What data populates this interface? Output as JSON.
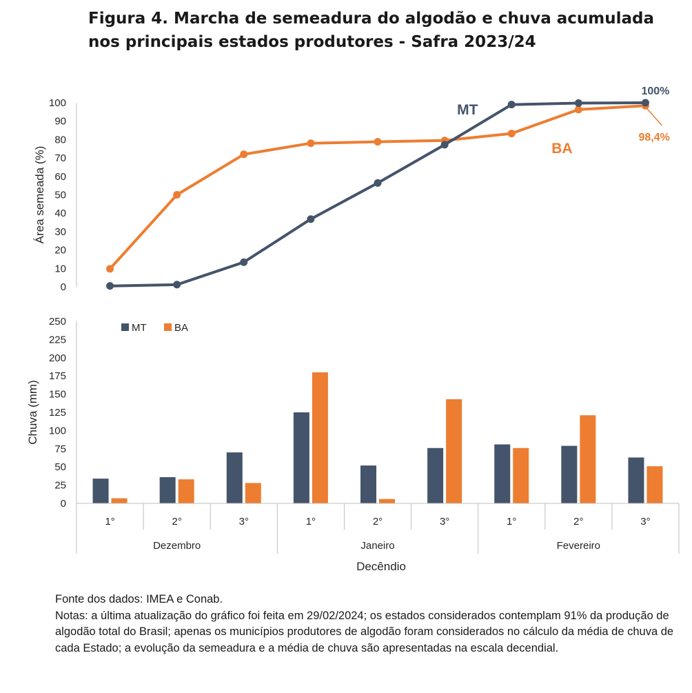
{
  "title": "Figura 4. Marcha de semeadura do algodão e chuva acumulada nos principais estados produtores - Safra 2023/24",
  "footer": {
    "source": "Fonte dos dados: IMEA e Conab.",
    "notes": "Notas: a última atualização do gráfico foi feita em 29/02/2024; os estados considerados contemplam 91% da produção de algodão total do Brasil; apenas os municípios produtores de algodão foram considerados no cálculo da média de chuva de cada Estado; a evolução da semeadura e a média de chuva são apresentadas na escala decendial."
  },
  "colors": {
    "MT": "#44546a",
    "BA": "#ed7d31",
    "axis": "#bfbfbf",
    "text": "#262626"
  },
  "chart_data": [
    {
      "type": "line",
      "ylabel": "Área semeada (%)",
      "ylim": [
        0,
        100
      ],
      "yticks": [
        0,
        10,
        20,
        30,
        40,
        50,
        60,
        70,
        80,
        90,
        100
      ],
      "grid": false,
      "series": [
        {
          "name": "MT",
          "values": [
            0.5,
            1.2,
            13.4,
            36.8,
            56.4,
            77.2,
            99.0,
            99.8,
            100.0
          ]
        },
        {
          "name": "BA",
          "values": [
            9.8,
            50.0,
            72.0,
            78.0,
            78.8,
            79.5,
            83.3,
            96.3,
            98.4
          ]
        }
      ],
      "series_labels": {
        "MT": "MT",
        "BA": "BA"
      },
      "annotations": {
        "MT_end": "100%",
        "BA_end": "98,4%"
      }
    },
    {
      "type": "bar",
      "ylabel": "Chuva (mm)",
      "xlabel": "Decêndio",
      "ylim": [
        0,
        250
      ],
      "yticks": [
        0,
        25,
        50,
        75,
        100,
        125,
        150,
        175,
        200,
        225,
        250
      ],
      "grid": false,
      "legend": "top-left",
      "categories": [
        "1°",
        "2°",
        "3°",
        "1°",
        "2°",
        "3°",
        "1°",
        "2°",
        "3°"
      ],
      "groups": [
        "Dezembro",
        "Janeiro",
        "Fevereiro"
      ],
      "series": [
        {
          "name": "MT",
          "values": [
            34,
            36,
            70,
            125,
            52,
            76,
            81,
            79,
            63
          ]
        },
        {
          "name": "BA",
          "values": [
            7,
            33,
            28,
            180,
            6,
            143,
            76,
            121,
            51
          ]
        }
      ]
    }
  ]
}
